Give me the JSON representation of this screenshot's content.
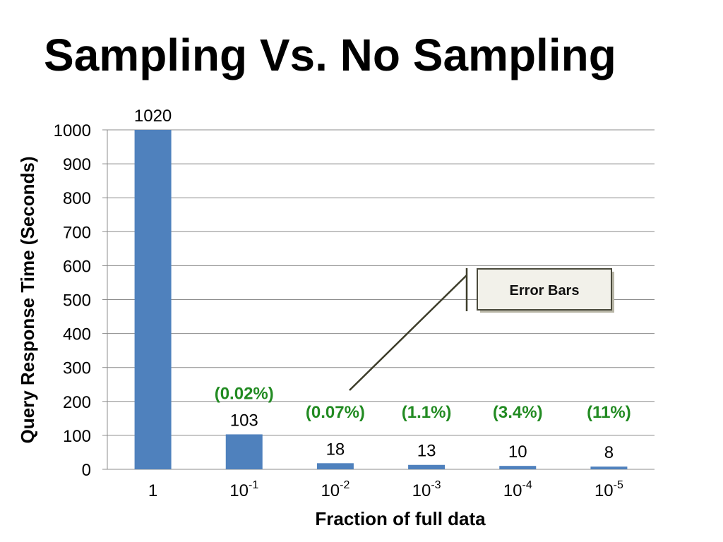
{
  "title": "Sampling Vs. No Sampling",
  "colors": {
    "bar": "#4f81bd",
    "pct": "#228b22",
    "grid": "#8c8c8c",
    "callout_border": "#4a4a3c",
    "callout_fill": "#f2f1ea",
    "leader": "#3d3d2a"
  },
  "chart_data": {
    "type": "bar",
    "xlabel": "Fraction  of full data",
    "ylabel": "Query Response Time (Seconds)",
    "ylim": [
      0,
      1000
    ],
    "yticks": [
      0,
      100,
      200,
      300,
      400,
      500,
      600,
      700,
      800,
      900,
      1000
    ],
    "grid": true,
    "categories": [
      {
        "base": "1",
        "exp": ""
      },
      {
        "base": "10",
        "exp": "-1"
      },
      {
        "base": "10",
        "exp": "-2"
      },
      {
        "base": "10",
        "exp": "-3"
      },
      {
        "base": "10",
        "exp": "-4"
      },
      {
        "base": "10",
        "exp": "-5"
      }
    ],
    "values": [
      1020,
      103,
      18,
      13,
      10,
      8
    ],
    "value_labels": [
      "1020",
      "103",
      "18",
      "13",
      "10",
      "8"
    ],
    "error_labels": [
      "",
      "(0.02%)",
      "(0.07%)",
      "(1.1%)",
      "(3.4%)",
      "(11%)"
    ],
    "annotations": [
      {
        "text": "Error Bars"
      }
    ]
  }
}
